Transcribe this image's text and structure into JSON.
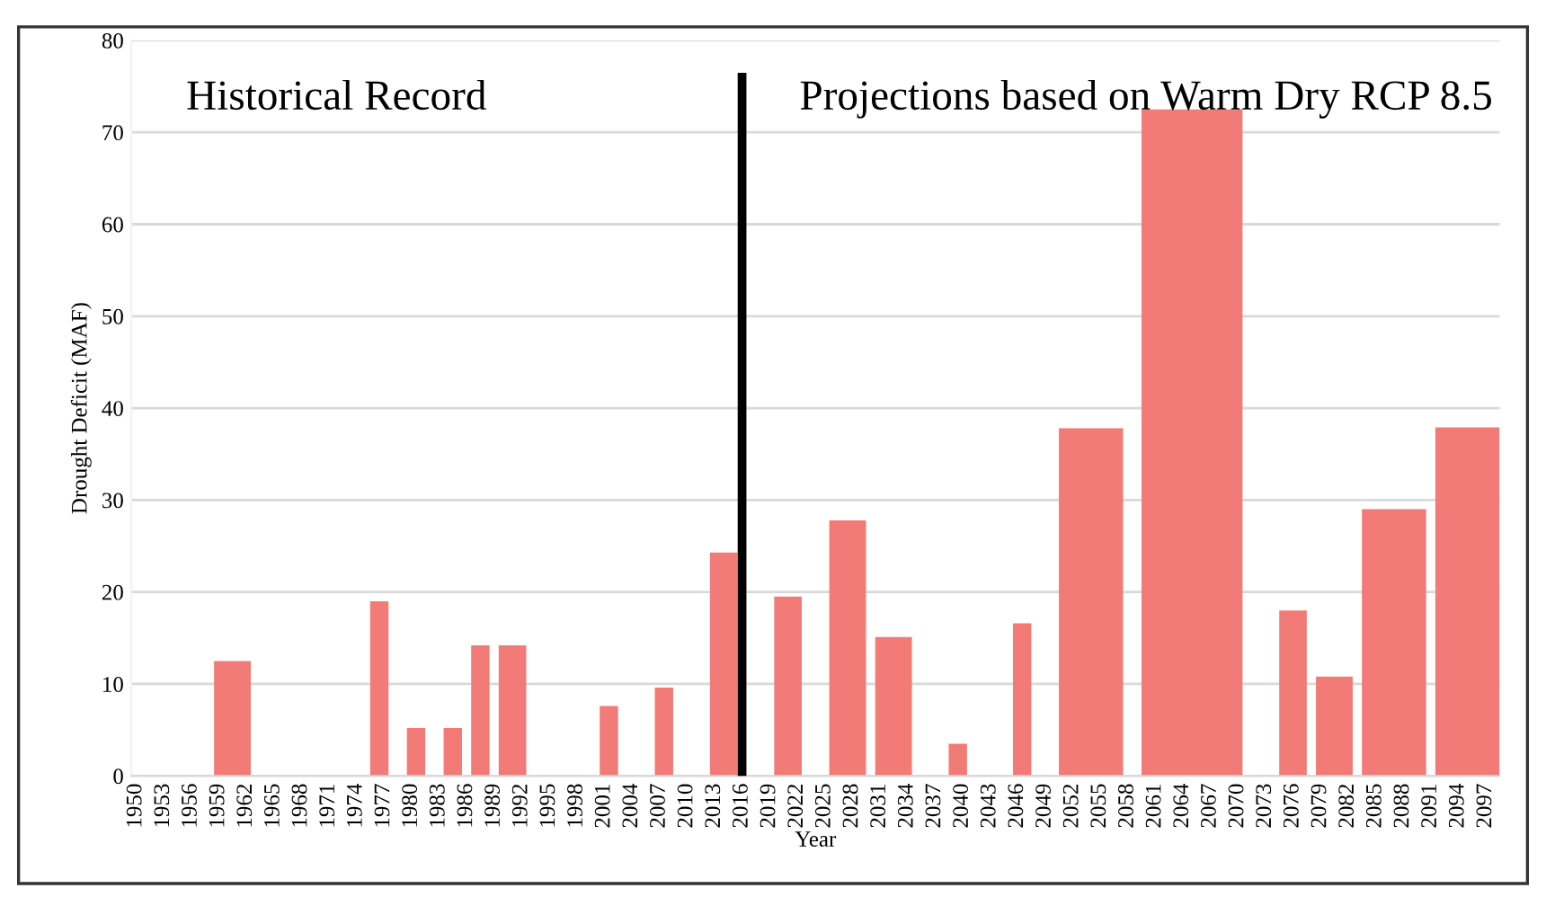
{
  "chart_data": {
    "type": "histogram",
    "xlabel": "Year",
    "ylabel": "Drought Deficit (MAF)",
    "bins": [
      1958.5,
      1962.5,
      1975.5,
      1977.5,
      1979.5,
      1981.5,
      1983.5,
      1985.5,
      1986.5,
      1988.5,
      1989.5,
      1992.5,
      2000.5,
      2002.5,
      2006.5,
      2008.5,
      2012.5,
      2015.5,
      2019.5,
      2022.5,
      2025.5,
      2029.5,
      2030.5,
      2034.5,
      2038.5,
      2040.5,
      2045.5,
      2047.5,
      2050.5,
      2057.5,
      2059.5,
      2070.5,
      2074.5,
      2077.5,
      2078.5,
      2082.5,
      2083.5,
      2090.5,
      2091.5,
      2098.5
    ],
    "values": [
      12.5,
      0,
      19,
      0,
      5.2,
      0,
      5.2,
      0,
      14.2,
      0,
      14.2,
      0,
      7.6,
      0,
      9.6,
      0,
      24.3,
      0,
      19.5,
      0,
      27.8,
      0,
      15.1,
      0,
      3.5,
      0,
      16.6,
      0,
      37.8,
      0,
      72.5,
      0,
      18,
      0,
      10.8,
      0,
      29,
      0,
      37.9
    ],
    "color": "#f27b77",
    "xlim": [
      1949.5,
      2098.5
    ],
    "xticks": [
      1950,
      1953,
      1956,
      1959,
      1962,
      1965,
      1968,
      1971,
      1974,
      1977,
      1980,
      1983,
      1986,
      1989,
      1992,
      1995,
      1998,
      2001,
      2004,
      2007,
      2010,
      2013,
      2016,
      2019,
      2022,
      2025,
      2028,
      2031,
      2034,
      2037,
      2040,
      2043,
      2046,
      2049,
      2052,
      2055,
      2058,
      2061,
      2064,
      2067,
      2070,
      2073,
      2076,
      2079,
      2082,
      2085,
      2088,
      2091,
      2094,
      2097
    ],
    "ylim": [
      0,
      80
    ],
    "yticks": [
      0,
      10,
      20,
      30,
      40,
      50,
      60,
      70,
      80
    ],
    "grid": "y",
    "ref_lines": [
      {
        "axis": "x",
        "value": 2016,
        "color": "#000000"
      }
    ],
    "annotations": [
      "Historical Record",
      "Projections based on Warm Dry RCP 8.5"
    ]
  }
}
